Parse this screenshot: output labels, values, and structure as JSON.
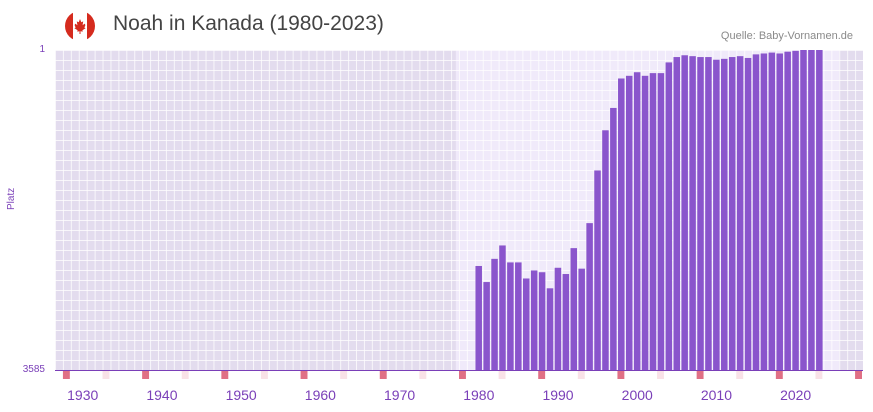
{
  "header": {
    "title": "Noah in Kanada (1980-2023)",
    "source": "Quelle: Baby-Vornamen.de",
    "flag_icon": "canada-flag-icon"
  },
  "colors": {
    "bar": "#8a55cc",
    "axis": "#7a3fb8",
    "plot_bg": "#e3dcee",
    "highlight_bg": "#f0eafa",
    "marker": "#e07085"
  },
  "chart_data": {
    "type": "bar",
    "title": "Noah in Kanada (1980-2023)",
    "xlabel": "",
    "ylabel": "Platz",
    "y_inverted": true,
    "ylim": [
      1,
      3585
    ],
    "ytick_labels": [
      "1",
      "3585"
    ],
    "xlim": [
      1927,
      2028
    ],
    "xtick_labels": [
      "1930",
      "1940",
      "1950",
      "1960",
      "1970",
      "1980",
      "1990",
      "2000",
      "2010",
      "2020"
    ],
    "xtick_values": [
      1930,
      1940,
      1950,
      1960,
      1970,
      1980,
      1990,
      2000,
      2010,
      2020
    ],
    "highlight_range": [
      1980,
      2023
    ],
    "categories": [
      1980,
      1981,
      1982,
      1983,
      1984,
      1985,
      1986,
      1987,
      1988,
      1989,
      1990,
      1991,
      1992,
      1993,
      1994,
      1995,
      1996,
      1997,
      1998,
      1999,
      2000,
      2001,
      2002,
      2003,
      2004,
      2005,
      2006,
      2007,
      2008,
      2009,
      2010,
      2011,
      2012,
      2013,
      2014,
      2015,
      2016,
      2017,
      2018,
      2019,
      2020,
      2021,
      2022,
      2023
    ],
    "values": [
      2420,
      2600,
      2340,
      2190,
      2380,
      2380,
      2560,
      2470,
      2490,
      2670,
      2440,
      2510,
      2220,
      2450,
      1940,
      1350,
      900,
      650,
      320,
      290,
      250,
      290,
      260,
      260,
      140,
      80,
      60,
      70,
      80,
      80,
      110,
      100,
      80,
      70,
      90,
      50,
      40,
      30,
      40,
      20,
      10,
      1,
      1,
      1
    ]
  }
}
